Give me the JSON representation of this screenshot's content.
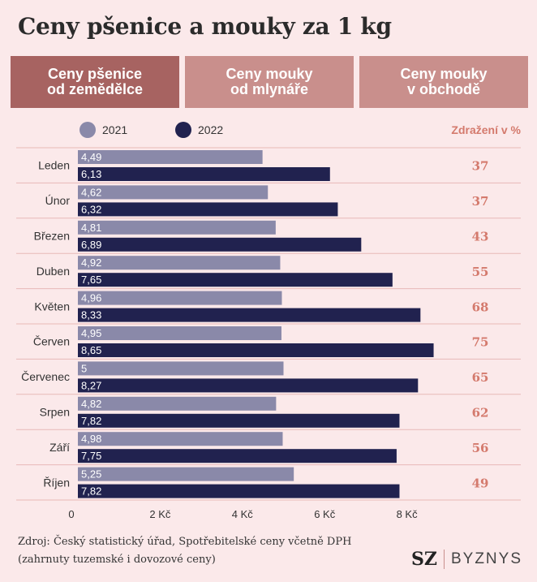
{
  "title": "Ceny pšenice a mouky za 1 kg",
  "tabs": [
    {
      "label": "Ceny pšenice\nod zemědělce",
      "active": true
    },
    {
      "label": "Ceny mouky\nod mlynáře",
      "active": false
    },
    {
      "label": "Ceny mouky\nv obchodě",
      "active": false
    }
  ],
  "increase_header": "Zdražení v %",
  "source": "Zdroj: Český statistický úřad, Spotřebitelské ceny včetně DPH (zahrnuty tuzemské i dovozové ceny)",
  "logo": {
    "mark": "SZ",
    "name": "BYZNYS"
  },
  "colors": {
    "s2021": "#8a89a9",
    "s2022": "#21224f",
    "accent": "#d47a6d",
    "tab": "#c98f8c",
    "tab_active": "#a76361"
  },
  "chart_data": {
    "type": "bar",
    "orientation": "horizontal",
    "categories": [
      "Leden",
      "Únor",
      "Březen",
      "Duben",
      "Květen",
      "Červen",
      "Červenec",
      "Srpen",
      "Září",
      "Říjen"
    ],
    "series": [
      {
        "name": "2021",
        "values": [
          "4,49",
          "4,62",
          "4,81",
          "4,92",
          "4,96",
          "4,95",
          "5",
          "4,82",
          "4,98",
          "5,25"
        ]
      },
      {
        "name": "2022",
        "values": [
          "6,13",
          "6,32",
          "6,89",
          "7,65",
          "8,33",
          "8,65",
          "8,27",
          "7,82",
          "7,75",
          "7,82"
        ]
      }
    ],
    "increase_pct": [
      37,
      37,
      43,
      55,
      68,
      75,
      65,
      62,
      56,
      49
    ],
    "xlim": [
      0,
      9
    ],
    "xticks": [
      {
        "value": 0,
        "label": "0"
      },
      {
        "value": 2,
        "label": "2 Kč"
      },
      {
        "value": 4,
        "label": "4 Kč"
      },
      {
        "value": 6,
        "label": "6 Kč"
      },
      {
        "value": 8,
        "label": "8 Kč"
      }
    ],
    "grid": false,
    "legend_position": "top-left"
  }
}
